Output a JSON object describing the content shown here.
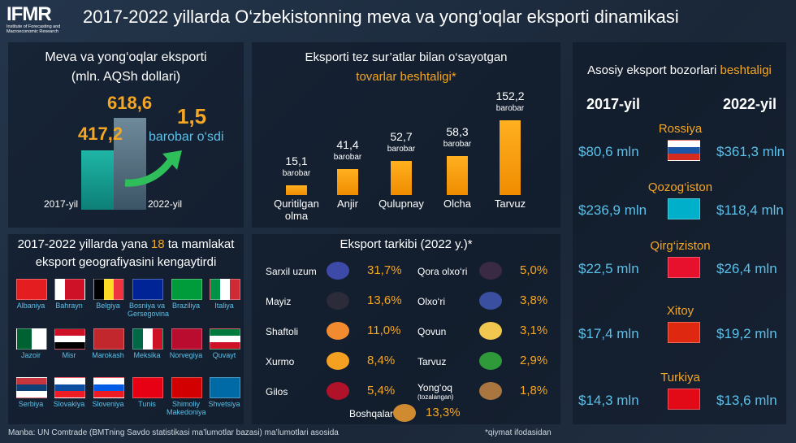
{
  "header": {
    "logo": "IFMR",
    "logo_subtitle": "Institute of Forecasting and Macroeconomic Research",
    "title": "2017-2022 yillarda O‘zbekistonning meva va yong‘oqlar eksporti dinamikasi"
  },
  "growth_panel": {
    "title": "Meva va yong‘oqlar eksporti",
    "subtitle": "(mln. AQSh dollari)",
    "bars": [
      {
        "year": "2017-yil",
        "value": "417,2"
      },
      {
        "year": "2022-yil",
        "value": "618,6"
      }
    ],
    "growth_value": "1,5",
    "growth_text": "barobar o‘sdi"
  },
  "fast_growth": {
    "title": "Eksporti tez sur’atlar bilan o‘sayotgan",
    "title_highlight": "tovarlar beshtaligi*",
    "items": [
      {
        "value": "15,1",
        "unit": "barobar",
        "name": "Quritilgan olma"
      },
      {
        "value": "41,4",
        "unit": "barobar",
        "name": "Anjir"
      },
      {
        "value": "52,7",
        "unit": "barobar",
        "name": "Qulupnay"
      },
      {
        "value": "58,3",
        "unit": "barobar",
        "name": "Olcha"
      },
      {
        "value": "152,2",
        "unit": "barobar",
        "name": "Tarvuz"
      }
    ]
  },
  "markets": {
    "title": "Asosiy eksport bozorlari",
    "title_highlight": "beshtaligi",
    "year_left": "2017-yil",
    "year_right": "2022-yil",
    "rows": [
      {
        "country": "Rossiya",
        "v2017": "$80,6 mln",
        "v2022": "$361,3 mln"
      },
      {
        "country": "Qozog‘iston",
        "v2017": "$236,9 mln",
        "v2022": "$118,4 mln"
      },
      {
        "country": "Qirg‘iziston",
        "v2017": "$22,5 mln",
        "v2022": "$26,4 mln"
      },
      {
        "country": "Xitoy",
        "v2017": "$17,4 mln",
        "v2022": "$19,2 mln"
      },
      {
        "country": "Turkiya",
        "v2017": "$14,3 mln",
        "v2022": "$13,6 mln"
      }
    ]
  },
  "new_countries": {
    "title_start": "2017-2022 yillarda yana",
    "title_count": "18",
    "title_end": "ta mamlakat",
    "title_line2": "eksport geografiyasini kengaytirdi",
    "countries": [
      "Albaniya",
      "Bahrayn",
      "Belgiya",
      "Bosniya va Gersegovina",
      "Braziliya",
      "Italiya",
      "Jazoir",
      "Misr",
      "Marokash",
      "Meksika",
      "Norvegiya",
      "Quvayt",
      "Serbiya",
      "Slovakiya",
      "Sloveniya",
      "Tunis",
      "Shimoliy Makedoniya",
      "Shvetsiya"
    ]
  },
  "structure": {
    "title": "Eksport tarkibi (2022 y.)*",
    "items": [
      {
        "name": "Sarxil uzum",
        "share": "31,7%"
      },
      {
        "name": "Mayiz",
        "share": "13,6%"
      },
      {
        "name": "Shaftoli",
        "share": "11,0%"
      },
      {
        "name": "Xurmo",
        "share": "8,4%"
      },
      {
        "name": "Gilos",
        "share": "5,4%"
      },
      {
        "name": "Qora olxo‘ri",
        "share": "5,0%"
      },
      {
        "name": "Olxo‘ri",
        "share": "3,8%"
      },
      {
        "name": "Qovun",
        "share": "3,1%"
      },
      {
        "name": "Tarvuz",
        "share": "2,9%"
      },
      {
        "name": "Yong‘oq",
        "note": "(tozalangan)",
        "share": "1,8%"
      },
      {
        "name": "Boshqalar",
        "share": "13,3%"
      }
    ]
  },
  "footer": {
    "source": "Manba: UN Comtrade (BMTning Savdo statistikasi ma’lumotlar bazasi) ma’lumotlari asosida",
    "note": "*qiymat ifodasidan"
  }
}
